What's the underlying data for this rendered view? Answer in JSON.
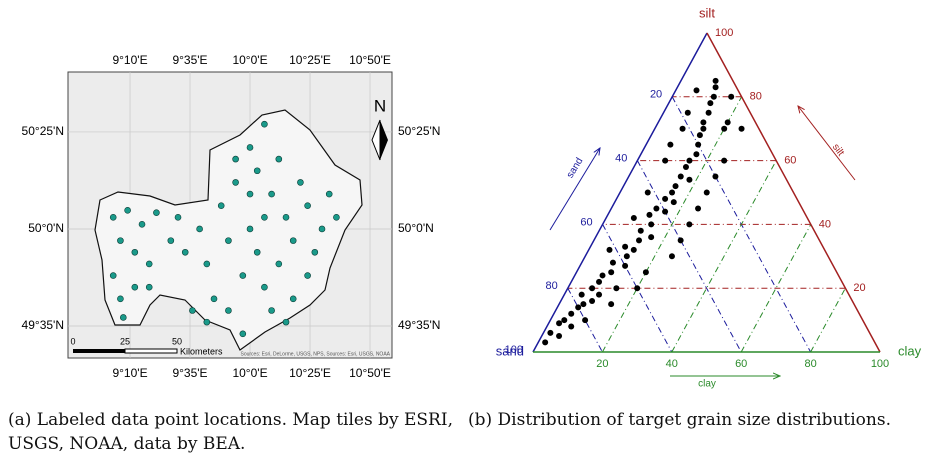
{
  "figure": {
    "map": {
      "lonlim": [
        8.736,
        10.986
      ],
      "latlim": [
        49.446,
        50.674
      ],
      "lonticks": [
        {
          "value": 9.1667,
          "label": "9°10'E"
        },
        {
          "value": 9.5833,
          "label": "9°35'E"
        },
        {
          "value": 10.0,
          "label": "10°0'E"
        },
        {
          "value": 10.4167,
          "label": "10°25'E"
        },
        {
          "value": 10.8333,
          "label": "10°50'E"
        }
      ],
      "latticks": [
        {
          "value": 50.4167,
          "label": "50°25'N"
        },
        {
          "value": 50.0,
          "label": "50°0'N"
        },
        {
          "value": 49.5833,
          "label": "49°35'N"
        }
      ],
      "north": "N",
      "scale_labels": [
        "0",
        "25",
        "50"
      ],
      "scale_unit": "Kilometers",
      "attribution": "Sources: Esri, DeLorme, USGS, NPS, Sources: Esri, USGS, NOAA",
      "point_color": "#1a9a8a",
      "points": {
        "lon": [
          9.05,
          9.1,
          9.15,
          9.2,
          9.25,
          9.3,
          9.35,
          9.45,
          9.5,
          9.05,
          9.1,
          9.12,
          9.2,
          9.3,
          9.55,
          9.65,
          9.7,
          9.75,
          9.8,
          9.85,
          9.9,
          9.95,
          9.6,
          9.7,
          10.0,
          10.05,
          10.1,
          10.15,
          10.2,
          10.25,
          10.0,
          10.05,
          10.1,
          10.15,
          10.2,
          10.3,
          10.35,
          10.4,
          10.45,
          10.5,
          10.55,
          10.6,
          10.3,
          10.25,
          9.95,
          9.85,
          10.4,
          10.1,
          9.9,
          10.0
        ],
        "lat": [
          50.05,
          49.95,
          50.08,
          49.9,
          50.02,
          49.85,
          50.07,
          49.95,
          50.05,
          49.8,
          49.7,
          49.62,
          49.75,
          49.75,
          49.9,
          50.0,
          49.85,
          49.7,
          50.1,
          49.95,
          50.2,
          49.8,
          49.65,
          49.6,
          50.35,
          50.25,
          50.45,
          50.15,
          50.3,
          50.05,
          50.0,
          49.9,
          49.75,
          49.65,
          49.85,
          49.95,
          50.2,
          50.1,
          49.9,
          50.0,
          50.15,
          50.05,
          49.7,
          49.6,
          49.55,
          49.65,
          49.8,
          50.05,
          50.3,
          50.15
        ]
      }
    },
    "ternary": {
      "vertices": {
        "sand": "sand",
        "silt": "silt",
        "clay": "clay"
      },
      "axis_titles": {
        "sand": "sand",
        "silt": "silt",
        "clay": "clay"
      },
      "colors": {
        "sand": "#1c1c9c",
        "silt": "#a32020",
        "clay": "#2a8a2a"
      },
      "ticks": {
        "sand": [
          20,
          40,
          60,
          80,
          100
        ],
        "silt": [
          20,
          40,
          60,
          80,
          100
        ],
        "clay": [
          20,
          40,
          60,
          80,
          100
        ]
      },
      "points": {
        "sand": [
          95,
          92,
          90,
          88,
          86,
          85,
          83,
          80,
          78,
          77,
          75,
          73,
          72,
          70,
          68,
          66,
          65,
          63,
          60,
          58,
          57,
          55,
          52,
          50,
          48,
          46,
          45,
          42,
          40,
          38,
          36,
          35,
          33,
          30,
          28,
          27,
          25,
          22,
          20,
          18,
          16,
          15,
          12,
          10,
          8,
          6,
          5,
          10,
          20,
          30,
          40,
          15,
          25,
          35,
          8,
          12,
          18,
          45,
          55,
          60,
          70,
          3,
          5,
          22,
          28,
          32,
          42,
          50,
          62,
          80
        ],
        "silt": [
          3,
          6,
          5,
          9,
          10,
          8,
          12,
          14,
          15,
          18,
          16,
          20,
          18,
          22,
          24,
          20,
          25,
          28,
          27,
          30,
          33,
          32,
          35,
          38,
          36,
          40,
          43,
          45,
          44,
          48,
          47,
          50,
          52,
          55,
          54,
          58,
          60,
          62,
          65,
          68,
          70,
          72,
          75,
          78,
          80,
          83,
          85,
          70,
          55,
          45,
          35,
          60,
          50,
          40,
          72,
          82,
          75,
          30,
          25,
          20,
          15,
          80,
          70,
          70,
          65,
          60,
          50,
          42,
          32,
          10
        ]
      }
    }
  },
  "captions": [
    "(a) Labeled data point locations. Map tiles by ESRI, USGS, NOAA, data by BEA.",
    "(b) Distribution of target grain size distributions."
  ]
}
